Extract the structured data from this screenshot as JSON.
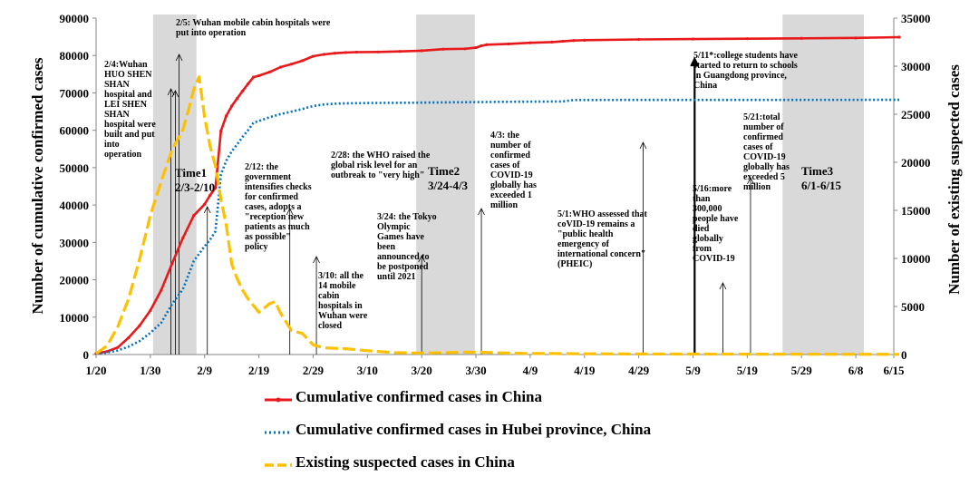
{
  "chart_data": {
    "type": "line",
    "x_ticks": [
      "1/20",
      "1/30",
      "2/9",
      "2/19",
      "2/29",
      "3/10",
      "3/20",
      "3/30",
      "4/9",
      "4/19",
      "4/29",
      "5/9",
      "5/19",
      "5/29",
      "6/8",
      "6/15"
    ],
    "ylabel_left": "Number of cumulative confirmed cases",
    "ylabel_right": "Number of existing suspected cases",
    "ylim_left": [
      0,
      90000
    ],
    "ylim_right": [
      0,
      35000
    ],
    "yticks_left": [
      "0",
      "10000",
      "20000",
      "30000",
      "40000",
      "50000",
      "60000",
      "70000",
      "80000",
      "90000"
    ],
    "yticks_right": [
      "0",
      "5000",
      "10000",
      "15000",
      "20000",
      "25000",
      "30000",
      "35000"
    ],
    "legend_position": "bottom",
    "series": [
      {
        "name": "Cumulative confirmed cases in China",
        "axis": "left",
        "color": "#e8191b",
        "points": [
          [
            0,
            300
          ],
          [
            2,
            800
          ],
          [
            4,
            1900
          ],
          [
            6,
            4500
          ],
          [
            8,
            7700
          ],
          [
            10,
            11800
          ],
          [
            12,
            17200
          ],
          [
            14,
            24300
          ],
          [
            16,
            31200
          ],
          [
            18,
            37200
          ],
          [
            20,
            40200
          ],
          [
            21,
            42600
          ],
          [
            22,
            44600
          ],
          [
            23,
            59800
          ],
          [
            24,
            63900
          ],
          [
            25,
            66500
          ],
          [
            26,
            68500
          ],
          [
            27,
            70500
          ],
          [
            28,
            72400
          ],
          [
            29,
            74200
          ],
          [
            30,
            74600
          ],
          [
            32,
            75600
          ],
          [
            34,
            76900
          ],
          [
            36,
            77700
          ],
          [
            38,
            78600
          ],
          [
            40,
            79800
          ],
          [
            42,
            80300
          ],
          [
            44,
            80600
          ],
          [
            46,
            80800
          ],
          [
            48,
            80900
          ],
          [
            52,
            80950
          ],
          [
            56,
            81100
          ],
          [
            60,
            81300
          ],
          [
            64,
            81700
          ],
          [
            68,
            81800
          ],
          [
            70,
            82100
          ],
          [
            71,
            82600
          ],
          [
            72,
            82900
          ],
          [
            76,
            83100
          ],
          [
            80,
            83400
          ],
          [
            84,
            83600
          ],
          [
            86,
            83800
          ],
          [
            88,
            84000
          ],
          [
            90,
            84100
          ],
          [
            100,
            84300
          ],
          [
            110,
            84400
          ],
          [
            120,
            84500
          ],
          [
            130,
            84600
          ],
          [
            140,
            84700
          ],
          [
            148,
            84900
          ]
        ]
      },
      {
        "name": "Cumulative confirmed cases in Hubei province, China",
        "axis": "left",
        "color": "#0070c0",
        "points": [
          [
            0,
            270
          ],
          [
            2,
            500
          ],
          [
            4,
            1100
          ],
          [
            6,
            2100
          ],
          [
            8,
            3600
          ],
          [
            10,
            5800
          ],
          [
            12,
            8500
          ],
          [
            14,
            13500
          ],
          [
            16,
            17500
          ],
          [
            18,
            25000
          ],
          [
            20,
            29000
          ],
          [
            21,
            30700
          ],
          [
            22,
            33000
          ],
          [
            23,
            48200
          ],
          [
            24,
            51900
          ],
          [
            25,
            54400
          ],
          [
            26,
            56200
          ],
          [
            27,
            58200
          ],
          [
            28,
            60000
          ],
          [
            29,
            62000
          ],
          [
            30,
            62500
          ],
          [
            32,
            63500
          ],
          [
            34,
            64300
          ],
          [
            36,
            65000
          ],
          [
            38,
            65700
          ],
          [
            40,
            66500
          ],
          [
            42,
            66900
          ],
          [
            44,
            67100
          ],
          [
            46,
            67200
          ],
          [
            50,
            67300
          ],
          [
            60,
            67400
          ],
          [
            75,
            67600
          ],
          [
            86,
            67700
          ],
          [
            88,
            68100
          ],
          [
            100,
            68130
          ],
          [
            148,
            68135
          ]
        ]
      },
      {
        "name": "Existing suspected cases in China",
        "axis": "right",
        "color": "#fec000",
        "points": [
          [
            0,
            100
          ],
          [
            2,
            900
          ],
          [
            4,
            2900
          ],
          [
            6,
            5800
          ],
          [
            8,
            9900
          ],
          [
            10,
            14500
          ],
          [
            12,
            18000
          ],
          [
            14,
            21300
          ],
          [
            16,
            23400
          ],
          [
            17,
            25400
          ],
          [
            18,
            27600
          ],
          [
            19,
            28900
          ],
          [
            20,
            24700
          ],
          [
            21,
            21700
          ],
          [
            22,
            19600
          ],
          [
            23,
            16200
          ],
          [
            24,
            13400
          ],
          [
            25,
            9400
          ],
          [
            26,
            7900
          ],
          [
            27,
            6700
          ],
          [
            28,
            5800
          ],
          [
            30,
            4400
          ],
          [
            32,
            5300
          ],
          [
            33,
            5500
          ],
          [
            34,
            4300
          ],
          [
            36,
            2500
          ],
          [
            38,
            2200
          ],
          [
            40,
            1000
          ],
          [
            42,
            700
          ],
          [
            46,
            600
          ],
          [
            50,
            400
          ],
          [
            55,
            200
          ],
          [
            60,
            150
          ],
          [
            64,
            200
          ],
          [
            68,
            250
          ],
          [
            72,
            220
          ],
          [
            76,
            150
          ],
          [
            80,
            100
          ],
          [
            84,
            100
          ],
          [
            90,
            80
          ],
          [
            100,
            60
          ],
          [
            120,
            40
          ],
          [
            148,
            20
          ]
        ]
      }
    ],
    "shaded_periods": [
      {
        "label": "Time1",
        "range": "2/3-2/10"
      },
      {
        "label": "Time2",
        "range": "3/24-4/3"
      },
      {
        "label": "Time3",
        "range": "6/1-6/15"
      }
    ],
    "annotations": [
      "2/4:Wuhan HUO SHEN SHAN hospital and LEI SHEN SHAN hospital were built and put into operation",
      "2/5: Wuhan mobile cabin hospitals were put into operation",
      "2/12: the government intensifies checks for confirmed cases, adopts a \"reception new patients as much as possible\" policy",
      "2/28: the WHO raised the global risk level for an outbreak to \"very high\"",
      "3/10: all the 14 mobile cabin hospitals in Wuhan were closed",
      "3/24: the Tokyo Olympic Games have been announced to be postponed until 2021",
      "4/3: the number of confirmed cases of COVID-19 globally has exceeded 1 million",
      "5/1:WHO assessed that coVID-19 remains a \"public health emergency of international concern\"(PHEIC)",
      "5/11*:college students have started to return to schools in Guangdong province, China",
      "5/16:more than 300,000 people have died globally from COVID-19",
      "5/21:total number of confirmed cases of COVID-19 globally has exceeded 5 million"
    ]
  }
}
